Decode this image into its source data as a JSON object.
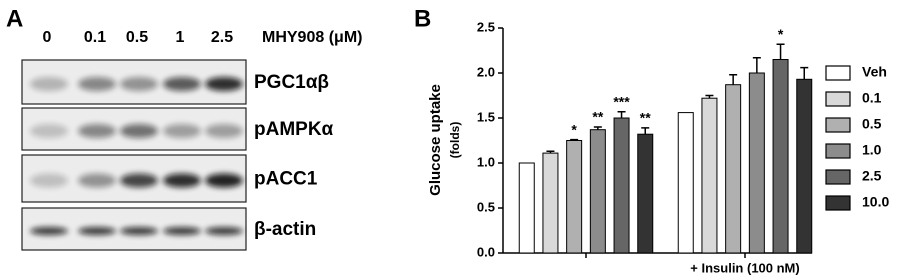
{
  "panel_a": {
    "panel_label": "A",
    "lanes": [
      "0",
      "0.1",
      "0.5",
      "1",
      "2.5"
    ],
    "treatment": "MHY908 (μM)",
    "blots": [
      "PGC1αβ",
      "pAMPKα",
      "pACC1",
      "β-actin"
    ]
  },
  "chart_data": {
    "type": "bar",
    "panel_label": "B",
    "y_label": "Glucose uptake",
    "y_label_sub": "(folds)",
    "categories": [
      null,
      "+ Insulin (100 nM)"
    ],
    "series": [
      {
        "name": "Veh",
        "color": "#ffffff",
        "values": [
          1.0,
          1.56
        ],
        "errors": [
          0,
          0
        ],
        "significance": [
          null,
          null
        ]
      },
      {
        "name": "0.1",
        "color": "#d9d9d9",
        "values": [
          1.11,
          1.72
        ],
        "errors": [
          0.02,
          0.03
        ],
        "significance": [
          null,
          null
        ]
      },
      {
        "name": "0.5",
        "color": "#b0b0b0",
        "values": [
          1.25,
          1.87
        ],
        "errors": [
          0.01,
          0.11
        ],
        "significance": [
          "*",
          null
        ]
      },
      {
        "name": "1.0",
        "color": "#8c8c8c",
        "values": [
          1.37,
          2.0
        ],
        "errors": [
          0.03,
          0.17
        ],
        "significance": [
          "**",
          null
        ]
      },
      {
        "name": "2.5",
        "color": "#666666",
        "values": [
          1.5,
          2.15
        ],
        "errors": [
          0.07,
          0.17
        ],
        "significance": [
          "***",
          "*"
        ]
      },
      {
        "name": "10.0",
        "color": "#333333",
        "values": [
          1.32,
          1.93
        ],
        "errors": [
          0.07,
          0.13
        ],
        "significance": [
          "**",
          null
        ]
      }
    ],
    "ylim": [
      0,
      2.5
    ],
    "yticks": [
      {
        "value": 0,
        "label": "0.0"
      },
      {
        "value": 0.5,
        "label": "0.5"
      },
      {
        "value": 1,
        "label": "1.0"
      },
      {
        "value": 1.5,
        "label": "1.5"
      },
      {
        "value": 2,
        "label": "2.0"
      },
      {
        "value": 2.5,
        "label": "2.5"
      }
    ],
    "grid": false
  }
}
